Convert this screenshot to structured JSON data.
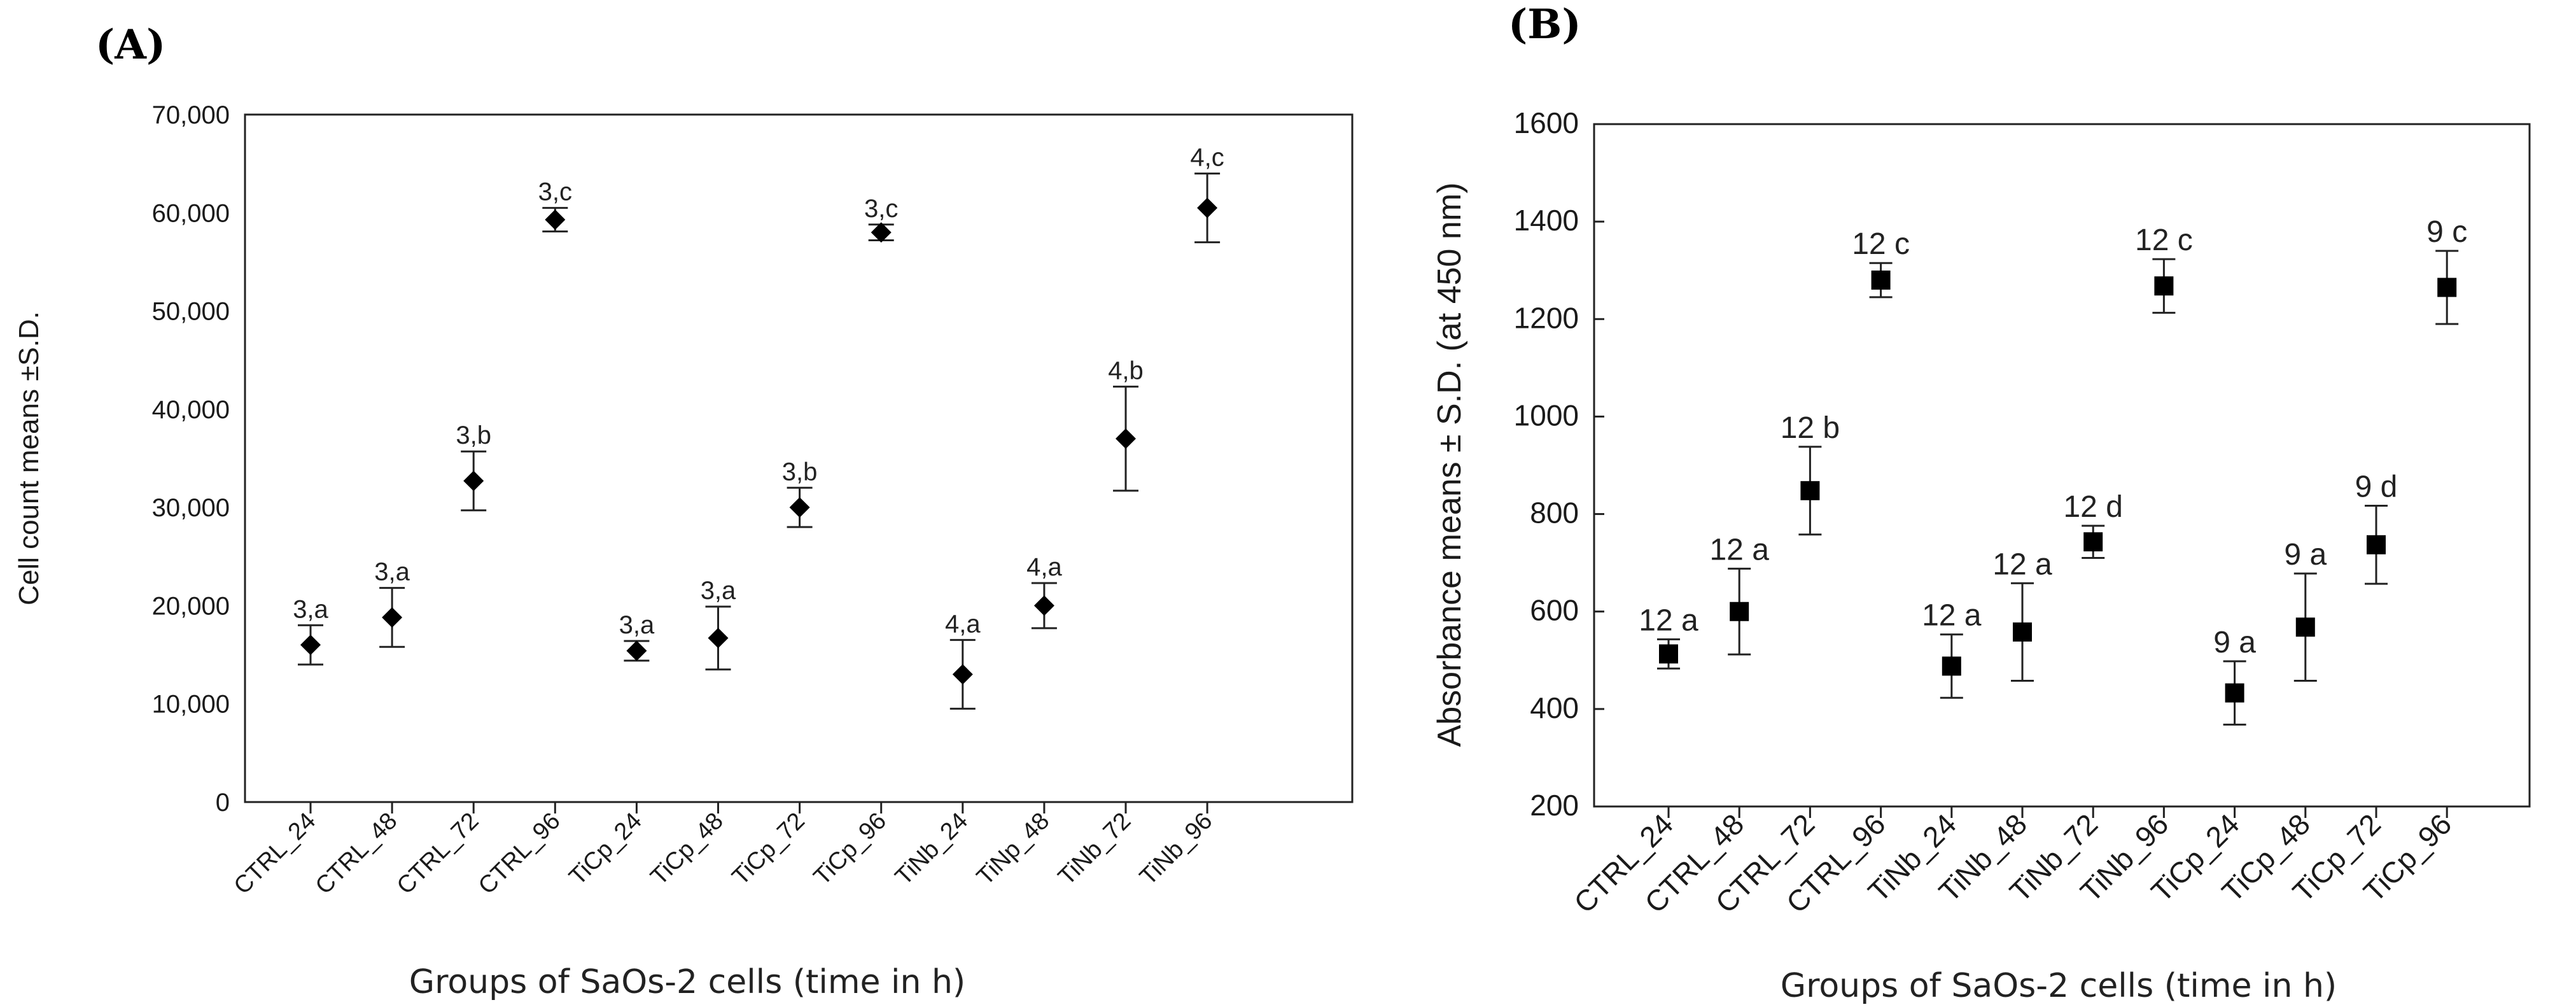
{
  "chart_data": [
    {
      "type": "scatter",
      "panel_label": "(A)",
      "title": "",
      "xlabel": "Groups of SaOs-2 cells (time in h)",
      "ylabel": "Cell count means ±S.D.",
      "ylim": [
        0,
        70000
      ],
      "yticks": [
        0,
        10000,
        20000,
        30000,
        40000,
        50000,
        60000,
        70000
      ],
      "ytick_labels": [
        "0",
        "10,000",
        "20,000",
        "30,000",
        "40,000",
        "50,000",
        "60,000",
        "70,000"
      ],
      "marker": "diamond",
      "grid": false,
      "categories": [
        "CTRL_24",
        "CTRL_48",
        "CTRL_72",
        "CTRL_96",
        "TiCp_24",
        "TiCp_48",
        "TiCp_72",
        "TiCp_96",
        "TiNb_24",
        "TiNp_48",
        "TiNb_72",
        "TiNb_96"
      ],
      "means": [
        16000,
        18800,
        32700,
        59300,
        15400,
        16700,
        30000,
        58000,
        13000,
        20000,
        37000,
        60500
      ],
      "sd": [
        2000,
        3000,
        3000,
        1200,
        1000,
        3200,
        2000,
        800,
        3500,
        2300,
        5300,
        3500
      ],
      "annotations": [
        "3,a",
        "3,a",
        "3,b",
        "3,c",
        "3,a",
        "3,a",
        "3,b",
        "3,c",
        "4,a",
        "4,a",
        "4,b",
        "4,c"
      ]
    },
    {
      "type": "scatter",
      "panel_label": "(B)",
      "title": "",
      "xlabel": "Groups of SaOs-2 cells (time in h)",
      "ylabel": "Absorbance means ± S.D. (at 450 nm)",
      "ylim": [
        200,
        1600
      ],
      "yticks": [
        200,
        400,
        600,
        800,
        1000,
        1200,
        1400,
        1600
      ],
      "ytick_labels": [
        "200",
        "400",
        "600",
        "800",
        "1000",
        "1200",
        "1400",
        "1600"
      ],
      "marker": "square",
      "grid": false,
      "categories": [
        "CTRL_24",
        "CTRL_48",
        "CTRL_72",
        "CTRL_96",
        "TiNb_24",
        "TiNb_48",
        "TiNb_72",
        "TiNb_96",
        "TiCp_24",
        "TiCp_48",
        "TiCp_72",
        "TiCp_96"
      ],
      "means": [
        513,
        600,
        848,
        1280,
        488,
        558,
        743,
        1268,
        433,
        568,
        737,
        1265
      ],
      "sd": [
        30,
        88,
        90,
        35,
        65,
        100,
        33,
        55,
        65,
        110,
        80,
        75
      ],
      "annotations": [
        "12 a",
        "12 a",
        "12 b",
        "12 c",
        "12 a",
        "12 a",
        "12 d",
        "12 c",
        "9 a",
        "9 a",
        "9 d",
        "9 c"
      ]
    }
  ]
}
